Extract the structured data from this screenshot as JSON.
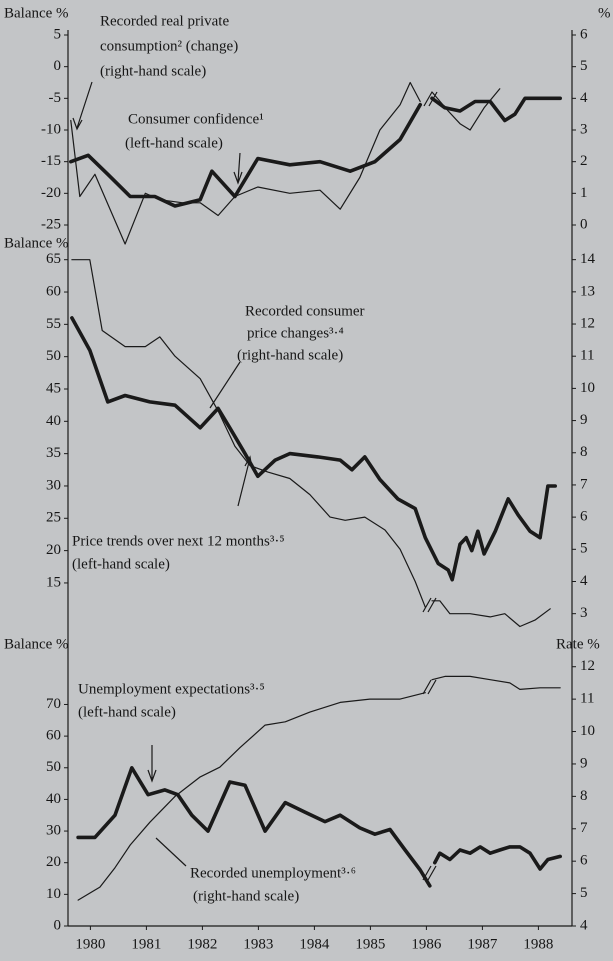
{
  "chart_data": [
    {
      "type": "line",
      "ylabel": "Balance %",
      "y2label": "%",
      "xlim": [
        1979.95,
        1988.95
      ],
      "ylim": [
        -25,
        5
      ],
      "yticks": [
        5,
        0,
        -5,
        -10,
        -15,
        -20,
        -25
      ],
      "y2lim": [
        0,
        6
      ],
      "y2ticks": [
        0,
        1,
        2,
        3,
        4,
        5,
        6
      ],
      "annotations": [
        "Recorded real private",
        "consumption² (change)",
        "(right-hand scale)",
        "Consumer confidence¹",
        "(left-hand scale)"
      ],
      "series": [
        {
          "color": "#1a1a1a",
          "axis": "y",
          "x": [
            1980.0,
            1980.31,
            1980.66,
            1981.06,
            1981.5,
            1981.86,
            1982.31,
            1982.52,
            1982.93,
            1983.34,
            1983.91,
            1984.45,
            1984.99,
            1985.43,
            1985.88,
            1986.24,
            1986.38,
            1986.45,
            1986.68,
            1986.95,
            1987.22,
            1987.49,
            1987.75,
            1987.93,
            1988.11,
            1988.38,
            1988.74
          ],
          "values": [
            -15,
            -14,
            -17,
            -20.5,
            -20.5,
            -22,
            -21,
            -16.5,
            -20.5,
            -14.5,
            -15.5,
            -15,
            -16.5,
            -15,
            -11.5,
            -6,
            null,
            -5,
            -6.5,
            -7,
            -5.5,
            -5.5,
            -8.5,
            -7.5,
            -5,
            -5,
            -5
          ]
        },
        {
          "color": "#1a1a1a",
          "axis": "y2",
          "x": [
            1980.0,
            1980.16,
            1980.43,
            1980.97,
            1981.33,
            1981.59,
            1982.0,
            1982.31,
            1982.63,
            1982.93,
            1983.34,
            1983.91,
            1984.45,
            1984.81,
            1985.16,
            1985.52,
            1985.88,
            1986.06,
            1986.24,
            1986.38,
            1986.45,
            1986.74,
            1986.95,
            1987.13,
            1987.38,
            1987.66
          ],
          "values": [
            3.3,
            0.9,
            1.6,
            -0.6,
            1.0,
            0.8,
            0.7,
            0.7,
            0.3,
            0.9,
            1.2,
            1.0,
            1.1,
            0.5,
            1.5,
            3.0,
            3.8,
            4.5,
            3.9,
            null,
            4.2,
            3.6,
            3.2,
            3.0,
            3.7,
            4.3
          ]
        }
      ]
    },
    {
      "type": "line",
      "ylabel": "Balance %",
      "xlim": [
        1979.95,
        1988.95
      ],
      "ylim": [
        9.5,
        66.5
      ],
      "yticks": [
        65,
        60,
        55,
        50,
        45,
        40,
        35,
        30,
        25,
        20,
        15
      ],
      "y2lim": [
        2.85,
        14.3
      ],
      "y2ticks": [
        14,
        13,
        12,
        11,
        10,
        9,
        8,
        7,
        6,
        5,
        4,
        3
      ],
      "annotations": [
        "Recorded consumer",
        "price changes³·⁴",
        "(right-hand scale)",
        "Price trends over next 12 months³·⁵",
        "(left-hand scale)"
      ],
      "series": [
        {
          "color": "#1a1a1a",
          "axis": "y",
          "x": [
            1980.02,
            1980.34,
            1980.66,
            1980.97,
            1981.41,
            1981.86,
            1982.31,
            1982.63,
            1982.84,
            1983.11,
            1983.34,
            1983.65,
            1983.91,
            1984.41,
            1984.81,
            1985.02,
            1985.25,
            1985.52,
            1985.84,
            1986.15,
            1986.33,
            1986.56,
            1986.74,
            1986.81,
            1986.95,
            1987.06,
            1987.16,
            1987.27,
            1987.38,
            1987.58,
            1987.81,
            1987.99,
            1988.2,
            1988.38,
            1988.52,
            1988.65
          ],
          "values": [
            56,
            51,
            43,
            44,
            43,
            42.5,
            39,
            42,
            39,
            35,
            31.5,
            34,
            35,
            34.5,
            34,
            32.5,
            34.5,
            31,
            28,
            26.5,
            22,
            18,
            17,
            15.5,
            21,
            22,
            20,
            23,
            19.5,
            23,
            28,
            25.5,
            23,
            22,
            30,
            30
          ]
        },
        {
          "color": "#1a1a1a",
          "axis": "y2",
          "x": [
            1980.02,
            1980.34,
            1980.56,
            1980.97,
            1981.33,
            1981.59,
            1981.86,
            1982.31,
            1982.63,
            1982.93,
            1983.2,
            1983.52,
            1983.91,
            1984.27,
            1984.63,
            1984.9,
            1985.25,
            1985.61,
            1985.88,
            1986.15,
            1986.33,
            1986.41,
            1986.45,
            1986.59,
            1986.77,
            1987.13,
            1987.49,
            1987.75,
            1988.02,
            1988.29,
            1988.56
          ],
          "values": [
            14,
            14,
            11.8,
            11.3,
            11.3,
            11.6,
            11.0,
            10.3,
            9.3,
            8.2,
            7.6,
            7.4,
            7.2,
            6.7,
            6.0,
            5.9,
            6.0,
            5.6,
            5.0,
            4.0,
            3.2,
            null,
            3.4,
            3.4,
            3.0,
            3.0,
            2.9,
            3.0,
            2.6,
            2.8,
            3.15
          ]
        }
      ]
    },
    {
      "type": "line",
      "ylabel": "Balance %",
      "y2label": "Rate %",
      "xlim": [
        1979.95,
        1988.95
      ],
      "xticks": [
        {
          "value": 1980.35,
          "label": "1980"
        },
        {
          "value": 1981.35,
          "label": "1981"
        },
        {
          "value": 1982.35,
          "label": "1982"
        },
        {
          "value": 1983.35,
          "label": "1983"
        },
        {
          "value": 1984.35,
          "label": "1984"
        },
        {
          "value": 1985.35,
          "label": "1985"
        },
        {
          "value": 1986.35,
          "label": "1986"
        },
        {
          "value": 1987.35,
          "label": "1987"
        },
        {
          "value": 1988.35,
          "label": "1988"
        }
      ],
      "ylim": [
        0,
        85
      ],
      "yticks": [
        70,
        60,
        50,
        40,
        30,
        20,
        10,
        0
      ],
      "y2lim": [
        4,
        12.3
      ],
      "y2ticks": [
        12,
        11,
        10,
        9,
        8,
        7,
        6,
        5,
        4
      ],
      "annotations": [
        "Unemployment expectations³·⁵",
        "(left-hand scale)",
        "Recorded unemployment³·⁶",
        "(right-hand scale)"
      ],
      "series": [
        {
          "color": "#1a1a1a",
          "axis": "y",
          "x": [
            1980.13,
            1980.43,
            1980.79,
            1981.09,
            1981.38,
            1981.68,
            1981.91,
            1982.16,
            1982.45,
            1982.84,
            1983.11,
            1983.47,
            1983.83,
            1984.18,
            1984.54,
            1984.81,
            1985.16,
            1985.43,
            1985.7,
            1985.97,
            1986.24,
            1986.41,
            1986.45,
            1986.5,
            1986.59,
            1986.77,
            1986.95,
            1987.13,
            1987.31,
            1987.49,
            1987.66,
            1987.84,
            1988.02,
            1988.2,
            1988.38,
            1988.52,
            1988.74
          ],
          "values": [
            28,
            28,
            35,
            50,
            41.5,
            43,
            41.5,
            35,
            30,
            45.5,
            44.5,
            30,
            39,
            36,
            33,
            35,
            31,
            29,
            30.5,
            24,
            17.7,
            12.7,
            null,
            20,
            23,
            21,
            24,
            23,
            25,
            23,
            24,
            25,
            25,
            23,
            18,
            21,
            22
          ]
        },
        {
          "color": "#1a1a1a",
          "axis": "y2",
          "x": [
            1980.13,
            1980.52,
            1980.79,
            1981.06,
            1981.41,
            1981.86,
            1982.31,
            1982.66,
            1983.02,
            1983.47,
            1983.83,
            1984.27,
            1984.81,
            1985.34,
            1985.88,
            1986.33,
            1986.41,
            1986.45,
            1986.68,
            1987.13,
            1987.49,
            1987.84,
            1988.02,
            1988.38,
            1988.74
          ],
          "values": [
            4.8,
            5.2,
            5.8,
            6.5,
            7.2,
            8.0,
            8.6,
            8.9,
            9.5,
            10.2,
            10.3,
            10.6,
            10.9,
            11.0,
            11.0,
            11.2,
            null,
            11.6,
            11.7,
            11.7,
            11.6,
            11.5,
            11.3,
            11.35,
            11.35
          ]
        }
      ]
    }
  ]
}
